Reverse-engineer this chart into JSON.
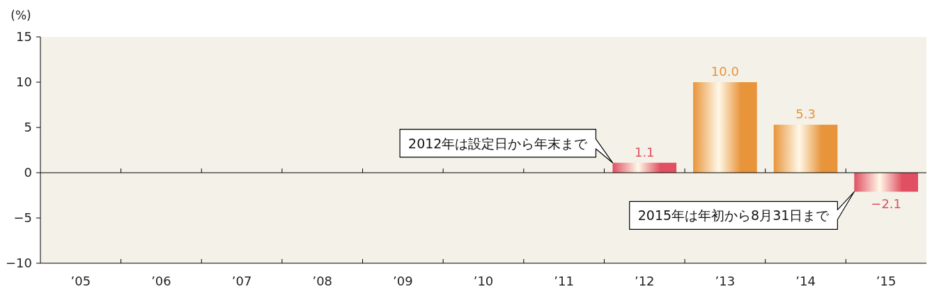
{
  "chart_data": {
    "type": "bar",
    "ylabel": "(%)",
    "categories": [
      "’05",
      "’06",
      "’07",
      "’08",
      "’09",
      "’10",
      "’11",
      "’12",
      "’13",
      "’14",
      "’15"
    ],
    "values": [
      null,
      null,
      null,
      null,
      null,
      null,
      null,
      1.1,
      10.0,
      5.3,
      -2.1
    ],
    "colors": [
      null,
      null,
      null,
      null,
      null,
      null,
      null,
      "#e05062",
      "#e8943a",
      "#e8943a",
      "#e05062"
    ],
    "value_labels": [
      null,
      null,
      null,
      null,
      null,
      null,
      null,
      "1.1",
      "10.0",
      "5.3",
      "−2.1"
    ],
    "ylim": [
      -10,
      15
    ],
    "yticks": [
      {
        "value": -10,
        "label": "−10"
      },
      {
        "value": -5,
        "label": "−5"
      },
      0,
      5,
      10,
      15
    ],
    "annotations": [
      "2012年は設定日から年末まで",
      "2015年は年初から8月31日まで"
    ]
  }
}
